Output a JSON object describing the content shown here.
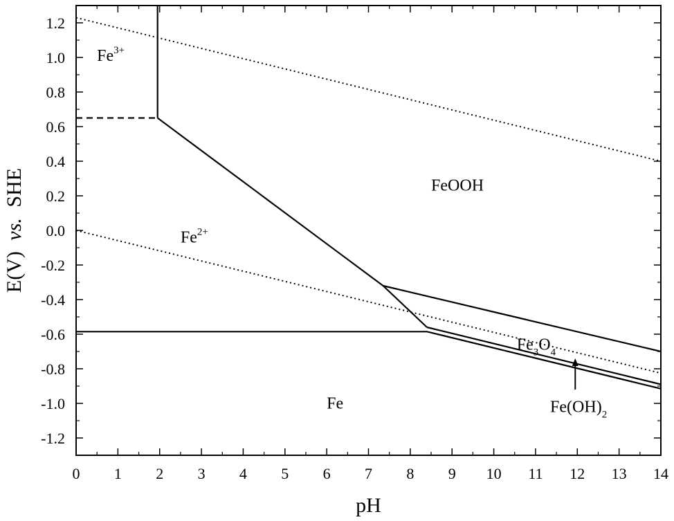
{
  "chart_data": {
    "type": "line",
    "xlabel": "pH",
    "ylabel": {
      "main": "E(V)",
      "italic": "vs.",
      "suffix": "SHE"
    },
    "xlim": [
      0,
      14
    ],
    "ylim": [
      -1.3,
      1.3
    ],
    "x_ticks": [
      0,
      1,
      2,
      3,
      4,
      5,
      6,
      7,
      8,
      9,
      10,
      11,
      12,
      13,
      14
    ],
    "x_tick_labels": [
      "0",
      "1",
      "2",
      "3",
      "4",
      "5",
      "6",
      "7",
      "8",
      "9",
      "10",
      "11",
      "12",
      "13",
      "14"
    ],
    "y_ticks": [
      1.2,
      1.0,
      0.8,
      0.6,
      0.4,
      0.2,
      0.0,
      -0.2,
      -0.4,
      -0.6,
      -0.8,
      -1.0,
      -1.2
    ],
    "y_tick_labels": [
      "1.2",
      "1.0",
      "0.8",
      "0.6",
      "0.4",
      "0.2",
      "0.0",
      "-0.2",
      "-0.4",
      "-0.6",
      "-0.8",
      "-1.0",
      "-1.2"
    ],
    "grid": false,
    "series": [
      {
        "style": "solid",
        "points": [
          [
            1.95,
            1.3
          ],
          [
            1.95,
            0.65
          ]
        ]
      },
      {
        "style": "dashed",
        "points": [
          [
            0,
            0.65
          ],
          [
            1.95,
            0.65
          ]
        ]
      },
      {
        "style": "solid",
        "points": [
          [
            1.95,
            0.65
          ],
          [
            7.35,
            -0.32
          ],
          [
            8.4,
            -0.56
          ]
        ]
      },
      {
        "style": "solid",
        "points": [
          [
            0,
            -0.585
          ],
          [
            8.4,
            -0.585
          ]
        ]
      },
      {
        "style": "solid",
        "points": [
          [
            7.35,
            -0.32
          ],
          [
            14,
            -0.7
          ]
        ]
      },
      {
        "style": "solid",
        "points": [
          [
            8.4,
            -0.56
          ],
          [
            14,
            -0.89
          ]
        ]
      },
      {
        "style": "solid",
        "points": [
          [
            8.4,
            -0.585
          ],
          [
            14,
            -0.915
          ]
        ]
      },
      {
        "style": "dotted",
        "points": [
          [
            0,
            1.23
          ],
          [
            14,
            0.4
          ]
        ]
      },
      {
        "style": "dotted",
        "points": [
          [
            0,
            0.0
          ],
          [
            14,
            -0.825
          ]
        ]
      }
    ],
    "annotations": [
      {
        "base": "Fe",
        "sup": "3+",
        "x": 0.5,
        "y": 0.98
      },
      {
        "base": "Fe",
        "sup": "2+",
        "x": 2.5,
        "y": -0.07
      },
      {
        "text": "FeOOH",
        "x": 8.5,
        "y": 0.23
      },
      {
        "text": "Fe",
        "x": 6.0,
        "y": -1.03
      },
      {
        "parts": [
          {
            "t": "Fe",
            "s": "base"
          },
          {
            "t": "3",
            "s": "sub"
          },
          {
            "t": "O",
            "s": "base"
          },
          {
            "t": "4",
            "s": "sub"
          }
        ],
        "x": 10.55,
        "y": -0.69
      },
      {
        "parts": [
          {
            "t": "Fe(OH)",
            "s": "base"
          },
          {
            "t": "2",
            "s": "sub"
          }
        ],
        "x": 11.35,
        "y": -1.05
      }
    ],
    "arrow": {
      "from": [
        11.95,
        -0.92
      ],
      "to": [
        11.95,
        -0.74
      ]
    }
  }
}
